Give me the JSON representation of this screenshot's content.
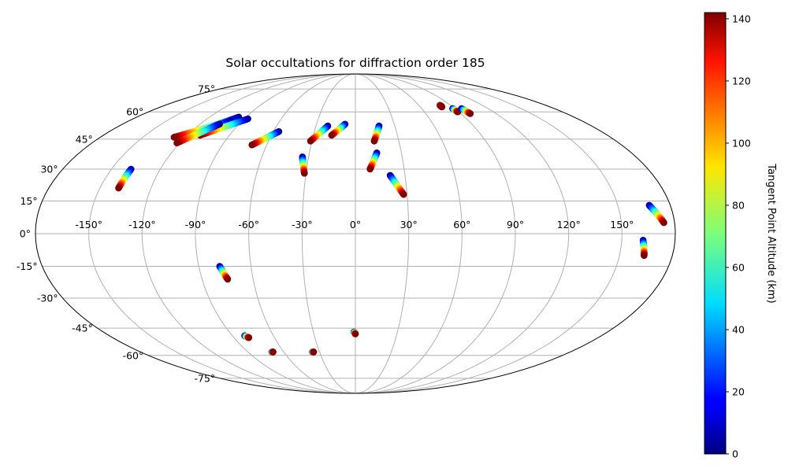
{
  "chart_data": {
    "type": "scatter",
    "projection": "mollweide",
    "title": "Solar occultations for diffraction order 185",
    "x_ticks": [
      "-150°",
      "-120°",
      "-90°",
      "-60°",
      "-30°",
      "0°",
      "30°",
      "60°",
      "90°",
      "120°",
      "150°"
    ],
    "y_ticks": [
      "75°",
      "60°",
      "45°",
      "30°",
      "15°",
      "0°",
      "-15°",
      "-30°",
      "-45°",
      "-60°",
      "-75°"
    ],
    "grid": true,
    "colorbar": {
      "label": "Tangent Point Altitude (km)",
      "colormap": "jet",
      "range": [
        0,
        142
      ],
      "ticks": [
        "0",
        "20",
        "40",
        "60",
        "80",
        "100",
        "120",
        "140"
      ]
    },
    "tracks": [
      {
        "lon_start": -138,
        "lat_start": 30,
        "lon_end": -139,
        "lat_end": 21,
        "alt_start": 0,
        "alt_end": 142
      },
      {
        "lon_start": -96,
        "lat_start": 57,
        "lon_end": -122,
        "lat_end": 47,
        "alt_start": 0,
        "alt_end": 142
      },
      {
        "lon_start": -99,
        "lat_start": 55,
        "lon_end": -128,
        "lat_end": 46,
        "alt_start": 0,
        "alt_end": 142
      },
      {
        "lon_start": -87,
        "lat_start": 56,
        "lon_end": -111,
        "lat_end": 47,
        "alt_start": 0,
        "alt_end": 142
      },
      {
        "lon_start": -105,
        "lat_start": 53,
        "lon_end": -122,
        "lat_end": 43,
        "alt_start": 0,
        "alt_end": 142
      },
      {
        "lon_start": -56,
        "lat_start": 49,
        "lon_end": -70,
        "lat_end": 42,
        "alt_start": 0,
        "alt_end": 142
      },
      {
        "lon_start": -21,
        "lat_start": 52,
        "lon_end": -31,
        "lat_end": 44,
        "alt_start": 0,
        "alt_end": 142
      },
      {
        "lon_start": -8,
        "lat_start": 53,
        "lon_end": -17,
        "lat_end": 47,
        "alt_start": 0,
        "alt_end": 142
      },
      {
        "lon_start": 18,
        "lat_start": 52,
        "lon_end": 13,
        "lat_end": 44,
        "alt_start": 0,
        "alt_end": 142
      },
      {
        "lon_start": -34,
        "lat_start": 36,
        "lon_end": -31,
        "lat_end": 28,
        "alt_start": 0,
        "alt_end": 142
      },
      {
        "lon_start": 14,
        "lat_start": 38,
        "lon_end": 9,
        "lat_end": 30,
        "alt_start": 0,
        "alt_end": 142
      },
      {
        "lon_start": 21,
        "lat_start": 27,
        "lon_end": 28,
        "lat_end": 18,
        "alt_start": 0,
        "alt_end": 142
      },
      {
        "lon_start": 80,
        "lat_start": 64,
        "lon_end": 80,
        "lat_end": 63,
        "alt_start": 135,
        "alt_end": 142
      },
      {
        "lon_start": 88,
        "lat_start": 62,
        "lon_end": 89,
        "lat_end": 60,
        "alt_start": 0,
        "alt_end": 142
      },
      {
        "lon_start": 96,
        "lat_start": 62,
        "lon_end": 98,
        "lat_end": 59,
        "alt_start": 0,
        "alt_end": 142
      },
      {
        "lon_start": 168,
        "lat_start": 13,
        "lon_end": 174,
        "lat_end": 5,
        "alt_start": 0,
        "alt_end": 142
      },
      {
        "lon_start": 162,
        "lat_start": -3,
        "lon_end": 164,
        "lat_end": -10,
        "alt_start": 0,
        "alt_end": 142
      },
      {
        "lon_start": -78,
        "lat_start": -15,
        "lon_end": -75,
        "lat_end": -21,
        "alt_start": 0,
        "alt_end": 142
      },
      {
        "lon_start": -81,
        "lat_start": -49,
        "lon_end": -79,
        "lat_end": -50,
        "alt_start": 0,
        "alt_end": 142
      },
      {
        "lon_start": -70,
        "lat_start": -58,
        "lon_end": -69,
        "lat_end": -58,
        "alt_start": 0,
        "alt_end": 142
      },
      {
        "lon_start": -36,
        "lat_start": -58,
        "lon_end": -35,
        "lat_end": -58,
        "alt_start": 0,
        "alt_end": 142
      },
      {
        "lon_start": -1,
        "lat_start": -47,
        "lon_end": 0,
        "lat_end": -48,
        "alt_start": 0,
        "alt_end": 142
      }
    ]
  }
}
